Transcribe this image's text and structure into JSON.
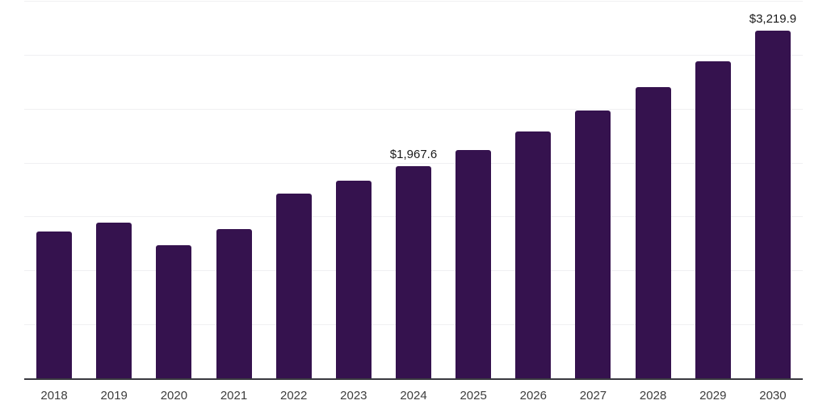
{
  "chart_data": {
    "type": "bar",
    "title": "",
    "xlabel": "",
    "ylabel": "",
    "categories": [
      "2018",
      "2019",
      "2020",
      "2021",
      "2022",
      "2023",
      "2024",
      "2025",
      "2026",
      "2027",
      "2028",
      "2029",
      "2030"
    ],
    "values": [
      1360,
      1440,
      1235,
      1385,
      1715,
      1835,
      1967.6,
      2120,
      2290,
      2485,
      2700,
      2940,
      3219.9
    ],
    "value_labels": [
      null,
      null,
      null,
      null,
      null,
      null,
      "$1,967.6",
      null,
      null,
      null,
      null,
      null,
      "$3,219.9"
    ],
    "ylim": [
      0,
      3500
    ],
    "gridline_step": 500,
    "grid": "horizontal-only",
    "legend": "none",
    "y_axis_tick_labels_visible": false,
    "colors": {
      "bar": "#35124E",
      "grid": "#F0F0F2",
      "axis": "#3A3A40",
      "tick_label": "#3D3D3D",
      "value_label": "#1A1A1A",
      "background": "#FFFFFF"
    }
  }
}
